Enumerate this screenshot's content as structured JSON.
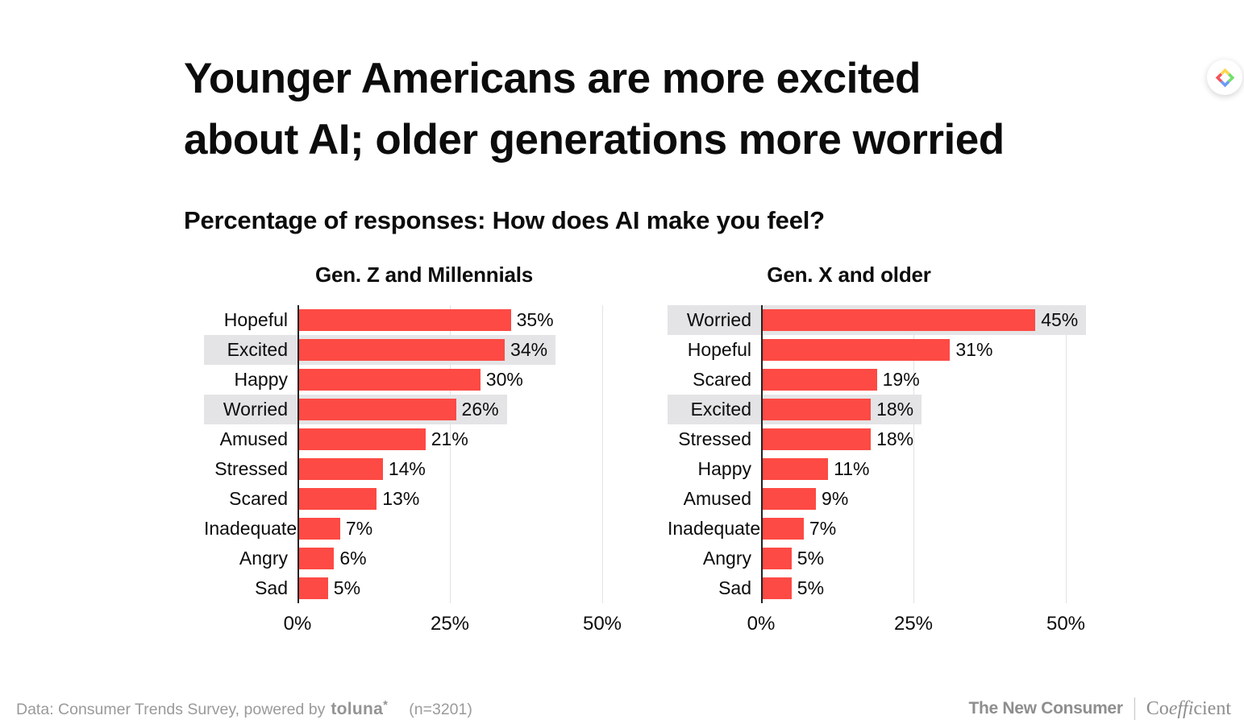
{
  "page": {
    "title_line1": "Younger Americans are more excited",
    "title_line2": "about AI; older generations more worried",
    "subtitle": "Percentage of responses: How does AI make you feel?"
  },
  "chart_data": [
    {
      "type": "bar",
      "orientation": "horizontal",
      "title": "Gen. Z and Millennials",
      "categories": [
        "Hopeful",
        "Excited",
        "Happy",
        "Worried",
        "Amused",
        "Stressed",
        "Scared",
        "Inadequate",
        "Angry",
        "Sad"
      ],
      "values": [
        35,
        34,
        30,
        26,
        21,
        14,
        13,
        7,
        6,
        5
      ],
      "value_labels": [
        "35%",
        "34%",
        "30%",
        "26%",
        "21%",
        "14%",
        "13%",
        "7%",
        "6%",
        "5%"
      ],
      "highlighted": [
        "Excited",
        "Worried"
      ],
      "xlim": [
        0,
        50
      ],
      "x_tick_values": [
        0,
        25,
        50
      ],
      "x_tick_labels": [
        "0%",
        "25%",
        "50%"
      ],
      "grid": "vertical"
    },
    {
      "type": "bar",
      "orientation": "horizontal",
      "title": "Gen. X and older",
      "categories": [
        "Worried",
        "Hopeful",
        "Scared",
        "Excited",
        "Stressed",
        "Happy",
        "Amused",
        "Inadequate",
        "Angry",
        "Sad"
      ],
      "values": [
        45,
        31,
        19,
        18,
        18,
        11,
        9,
        7,
        5,
        5
      ],
      "value_labels": [
        "45%",
        "31%",
        "19%",
        "18%",
        "18%",
        "11%",
        "9%",
        "7%",
        "5%",
        "5%"
      ],
      "highlighted": [
        "Worried",
        "Excited"
      ],
      "xlim": [
        0,
        50
      ],
      "x_tick_values": [
        0,
        25,
        50
      ],
      "x_tick_labels": [
        "0%",
        "25%",
        "50%"
      ],
      "grid": "vertical"
    }
  ],
  "footer": {
    "source_prefix": "Data: Consumer Trends Survey, powered by",
    "toluna_wordmark": "toluna",
    "toluna_asterisk": "*",
    "sample_size": "(n=3201)",
    "brand_left": "The New Consumer",
    "brand_right_pre": "Co",
    "brand_right_italic": "effi",
    "brand_right_post": "cient"
  },
  "logo_badge": {
    "icon": "coefficient-diamond-logo",
    "colors": {
      "left": "#F2545B",
      "top": "#FFD84D",
      "right": "#72E06A",
      "bottom": "#6E9BF4"
    }
  },
  "colors": {
    "bar": "#FD4A44",
    "highlight_band": "#E4E4E6",
    "gridline": "#E2E2E2",
    "axis": "#222222",
    "footer_text": "#9A9A9A"
  }
}
